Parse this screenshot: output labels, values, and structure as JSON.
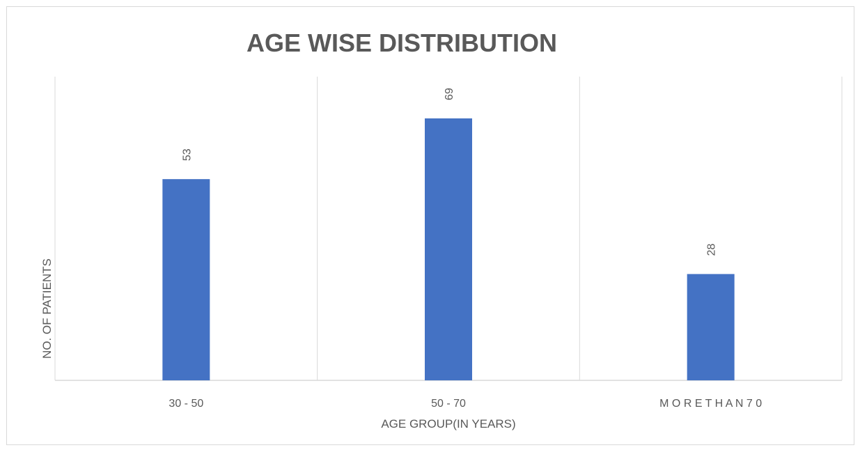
{
  "chart_data": {
    "type": "bar",
    "title": "AGE WISE DISTRIBUTION",
    "xlabel": "AGE GROUP(IN YEARS)",
    "ylabel": "NO. OF PATIENTS",
    "categories": [
      "30 - 50",
      "50 - 70",
      "M O R E T H A N 7 0"
    ],
    "values": [
      53,
      69,
      28
    ],
    "ylim": [
      0,
      80
    ],
    "bar_color": "#4472c4",
    "grid": "vertical category separators",
    "data_labels": "rotated above bars",
    "legend": "none"
  }
}
